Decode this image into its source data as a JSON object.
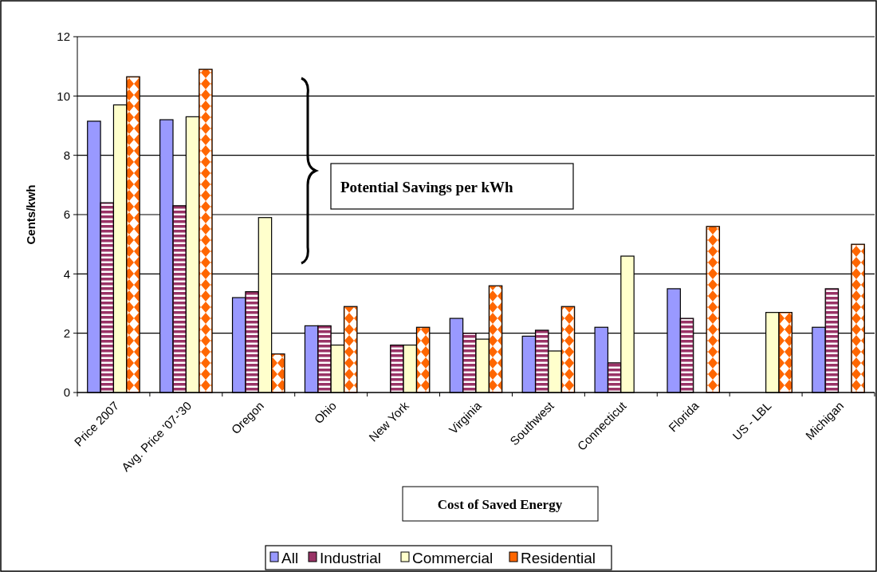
{
  "chart_data": {
    "type": "bar",
    "xlabel": "Cost of Saved Energy",
    "ylabel": "Cents/kwh",
    "categories": [
      "Price 2007",
      "Avg. Price '07-'30",
      "Oregon",
      "Ohio",
      "New York",
      "Virginia",
      "Southwest",
      "Connecticut",
      "Florida",
      "US - LBL",
      "Michigan"
    ],
    "series": [
      {
        "name": "All",
        "color": "#9999ff",
        "values": [
          9.15,
          9.2,
          3.2,
          2.25,
          null,
          2.5,
          1.9,
          2.2,
          3.5,
          null,
          2.2
        ]
      },
      {
        "name": "Industrial",
        "color": "#993366",
        "values": [
          6.4,
          6.3,
          3.4,
          2.25,
          1.6,
          2.0,
          2.1,
          1.0,
          2.5,
          null,
          3.5
        ]
      },
      {
        "name": "Commercial",
        "color": "#ffffcc",
        "values": [
          9.7,
          9.3,
          5.9,
          1.6,
          1.6,
          1.8,
          1.4,
          4.6,
          null,
          2.7,
          null
        ]
      },
      {
        "name": "Residential",
        "color": "#ff6600",
        "values": [
          10.65,
          10.9,
          1.3,
          2.9,
          2.2,
          3.6,
          2.9,
          null,
          5.6,
          2.7,
          5.0
        ]
      }
    ],
    "ylim": [
      0,
      12
    ],
    "yticks": [
      0,
      2,
      4,
      6,
      8,
      10,
      12
    ],
    "grid": "y",
    "legend": "bottom",
    "annotations": [
      "Potential Savings per kWh"
    ]
  }
}
